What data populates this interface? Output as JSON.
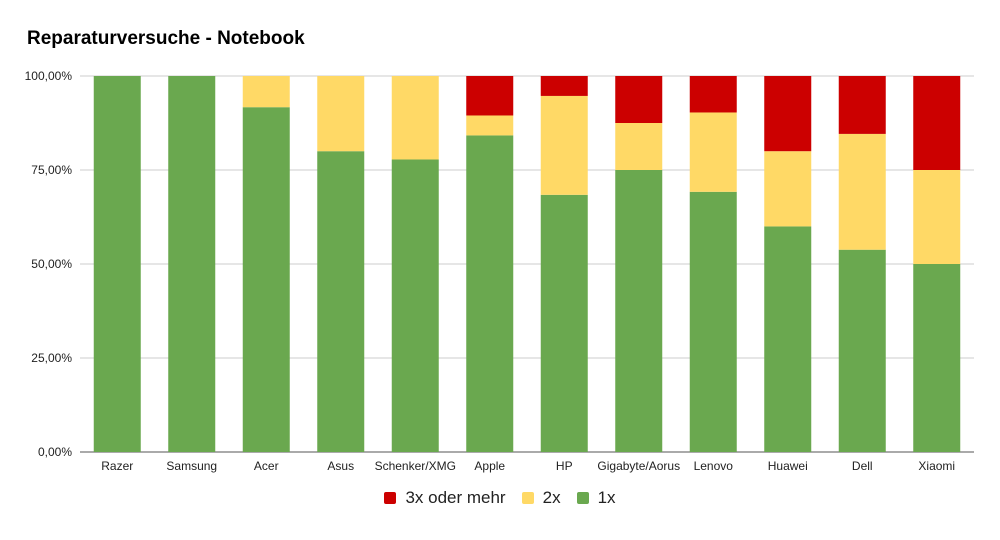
{
  "chart_data": {
    "type": "bar",
    "stacked": true,
    "title": "Reparaturversuche - Notebook",
    "xlabel": "",
    "ylabel": "",
    "categories": [
      "Razer",
      "Samsung",
      "Acer",
      "Asus",
      "Schenker/XMG",
      "Apple",
      "HP",
      "Gigabyte/Aorus",
      "Lenovo",
      "Huawei",
      "Dell",
      "Xiaomi"
    ],
    "ylim": [
      0,
      100
    ],
    "yticks": [
      "0,00%",
      "25,00%",
      "50,00%",
      "75,00%",
      "100,00%"
    ],
    "grid": true,
    "legend_position": "bottom",
    "series": [
      {
        "name": "1x",
        "color": "#6aa84f",
        "values": [
          100,
          100,
          91.7,
          80,
          77.8,
          84.2,
          68.4,
          75,
          69.2,
          60,
          53.8,
          50
        ]
      },
      {
        "name": "2x",
        "color": "#ffd966",
        "values": [
          0,
          0,
          8.3,
          20,
          22.2,
          5.3,
          26.3,
          12.5,
          21.1,
          20,
          30.8,
          25
        ]
      },
      {
        "name": "3x oder mehr",
        "color": "#cc0000",
        "values": [
          0,
          0,
          0,
          0,
          0,
          10.5,
          5.3,
          12.5,
          9.7,
          20,
          15.4,
          25
        ]
      }
    ],
    "legend_order": [
      "3x oder mehr",
      "2x",
      "1x"
    ]
  }
}
